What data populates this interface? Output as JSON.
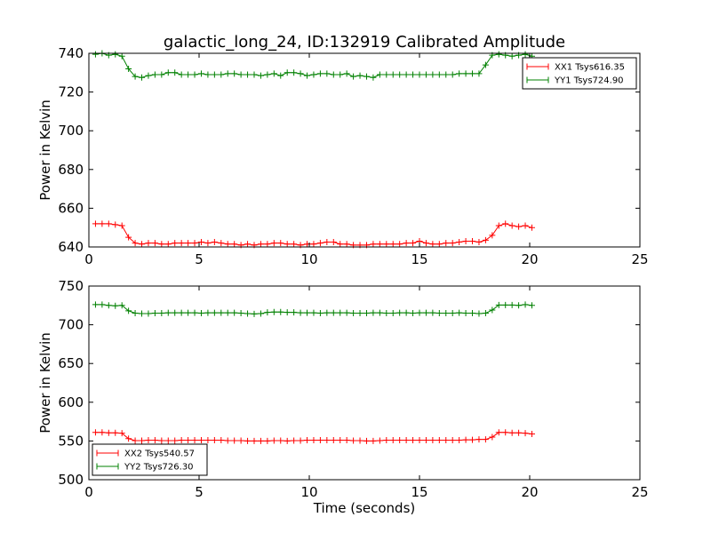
{
  "chart_data": [
    {
      "type": "line",
      "title": "galactic_long_24, ID:132919 Calibrated Amplitude",
      "xlabel": "",
      "ylabel": "Power in Kelvin",
      "xlim": [
        0,
        25
      ],
      "ylim": [
        640,
        740
      ],
      "xticks": [
        0,
        5,
        10,
        15,
        20,
        25
      ],
      "yticks": [
        640,
        660,
        680,
        700,
        720,
        740
      ],
      "grid": false,
      "legend_position": "top-right",
      "markers": "plus",
      "x": [
        0.3,
        0.6,
        0.9,
        1.2,
        1.5,
        1.8,
        2.1,
        2.4,
        2.7,
        3.0,
        3.3,
        3.6,
        3.9,
        4.2,
        4.5,
        4.8,
        5.1,
        5.4,
        5.7,
        6.0,
        6.3,
        6.6,
        6.9,
        7.2,
        7.5,
        7.8,
        8.1,
        8.4,
        8.7,
        9.0,
        9.3,
        9.6,
        9.9,
        10.2,
        10.5,
        10.8,
        11.1,
        11.4,
        11.7,
        12.0,
        12.3,
        12.6,
        12.9,
        13.2,
        13.5,
        13.8,
        14.1,
        14.4,
        14.7,
        15.0,
        15.3,
        15.6,
        15.9,
        16.2,
        16.5,
        16.8,
        17.1,
        17.4,
        17.7,
        18.0,
        18.3,
        18.6,
        18.9,
        19.2,
        19.5,
        19.8,
        20.1
      ],
      "series": [
        {
          "name": "XX1 Tsys616.35",
          "color": "#ff0000",
          "values": [
            652,
            652,
            652,
            651.5,
            651,
            645,
            642,
            641.5,
            642,
            642,
            641.5,
            641.5,
            642,
            642,
            642,
            642,
            642.5,
            642,
            642.5,
            642,
            641.5,
            641.5,
            641,
            641.5,
            641,
            641.5,
            641.5,
            642,
            642,
            641.5,
            641.5,
            641,
            641.5,
            641.5,
            642,
            642.5,
            642.5,
            641.5,
            641.5,
            641,
            641,
            641,
            641.5,
            641.5,
            641.5,
            641.5,
            641.5,
            642,
            642,
            643,
            642,
            641.5,
            641.5,
            642,
            642,
            642.5,
            643,
            643,
            642.5,
            643.5,
            646,
            651,
            652,
            651,
            650.5,
            651,
            650
          ]
        },
        {
          "name": "YY1 Tsys724.90",
          "color": "#008000",
          "values": [
            739.5,
            740,
            739,
            739.5,
            738.5,
            732,
            728,
            727.5,
            728.5,
            729,
            729,
            730,
            730,
            729,
            729,
            729,
            729.5,
            729,
            729,
            729,
            729.5,
            729.5,
            729,
            729,
            729,
            728.5,
            729,
            729.5,
            728.5,
            730,
            730,
            729.5,
            728.5,
            729,
            729.5,
            729.5,
            729,
            729,
            729.5,
            728,
            728.5,
            728,
            727.5,
            729,
            729,
            729,
            729,
            729,
            729,
            729,
            729,
            729,
            729,
            729,
            729,
            729.5,
            729.5,
            729.5,
            729.5,
            734,
            739,
            739.5,
            739,
            738.5,
            739,
            739.5,
            738.5
          ]
        }
      ]
    },
    {
      "type": "line",
      "title": "",
      "xlabel": "Time (seconds)",
      "ylabel": "Power in Kelvin",
      "xlim": [
        0,
        25
      ],
      "ylim": [
        500,
        750
      ],
      "xticks": [
        0,
        5,
        10,
        15,
        20,
        25
      ],
      "yticks": [
        500,
        550,
        600,
        650,
        700,
        750
      ],
      "grid": false,
      "legend_position": "bottom-left",
      "markers": "plus",
      "x": [
        0.3,
        0.6,
        0.9,
        1.2,
        1.5,
        1.8,
        2.1,
        2.4,
        2.7,
        3.0,
        3.3,
        3.6,
        3.9,
        4.2,
        4.5,
        4.8,
        5.1,
        5.4,
        5.7,
        6.0,
        6.3,
        6.6,
        6.9,
        7.2,
        7.5,
        7.8,
        8.1,
        8.4,
        8.7,
        9.0,
        9.3,
        9.6,
        9.9,
        10.2,
        10.5,
        10.8,
        11.1,
        11.4,
        11.7,
        12.0,
        12.3,
        12.6,
        12.9,
        13.2,
        13.5,
        13.8,
        14.1,
        14.4,
        14.7,
        15.0,
        15.3,
        15.6,
        15.9,
        16.2,
        16.5,
        16.8,
        17.1,
        17.4,
        17.7,
        18.0,
        18.3,
        18.6,
        18.9,
        19.2,
        19.5,
        19.8,
        20.1
      ],
      "series": [
        {
          "name": "XX2 Tsys540.57",
          "color": "#ff0000",
          "values": [
            561,
            561,
            560.5,
            560.5,
            560,
            553,
            550.5,
            550.5,
            551,
            551,
            550.5,
            550.5,
            550.5,
            551,
            551,
            551,
            551,
            551,
            551,
            551,
            550.5,
            550.5,
            550.5,
            550,
            550,
            550,
            550,
            550.5,
            550.5,
            550,
            550.5,
            550.5,
            551,
            551,
            551,
            551,
            551,
            551,
            551,
            550.5,
            550.5,
            550,
            550,
            550.5,
            551,
            551,
            551,
            551,
            551,
            551,
            551,
            551,
            551,
            551,
            551,
            551,
            551.5,
            551.5,
            552,
            552,
            555,
            561,
            561,
            560.5,
            560.5,
            560,
            559
          ]
        },
        {
          "name": "YY2 Tsys726.30",
          "color": "#008000",
          "values": [
            726,
            726,
            725,
            724.5,
            725,
            718,
            715,
            714.5,
            714.5,
            715,
            715,
            715.5,
            715.5,
            715.5,
            715.5,
            715.5,
            715,
            715.5,
            715.5,
            715.5,
            715.5,
            715.5,
            715,
            714.5,
            714,
            714.5,
            716,
            716.5,
            716.5,
            716,
            716,
            715.5,
            715.5,
            715.5,
            715,
            715.5,
            715.5,
            715.5,
            715.5,
            715,
            715,
            715,
            715.5,
            715.5,
            715,
            715,
            715.5,
            715.5,
            715,
            715.5,
            715.5,
            715.5,
            715,
            715,
            715,
            715.5,
            715,
            715,
            714.5,
            715,
            719,
            725.5,
            725.5,
            725.5,
            725,
            726,
            725
          ]
        }
      ]
    }
  ]
}
